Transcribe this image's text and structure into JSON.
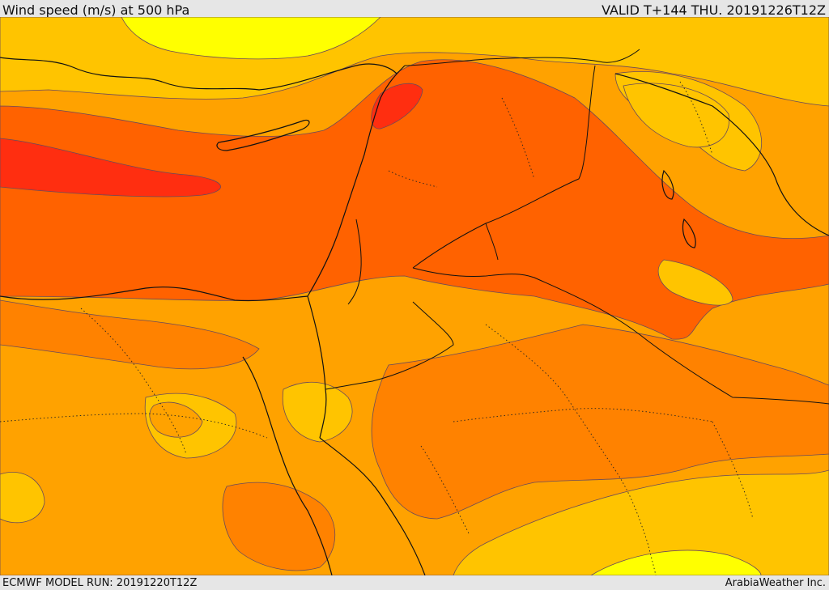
{
  "header": {
    "title": "Wind speed (m/s) at 500 hPa",
    "valid": "VALID T+144 THU. 20191226T12Z"
  },
  "footer": {
    "model_run": "ECMWF MODEL RUN: 20191220T12Z",
    "credit": "ArabiaWeather Inc."
  },
  "colors": {
    "yellow": "#ffff00",
    "light_orange": "#ffc400",
    "orange": "#ffa200",
    "dark_orange": "#ff8200",
    "red_orange": "#ff6200",
    "red": "#ff2e10",
    "coast": "#111111",
    "contour": "#6a4a5a"
  }
}
